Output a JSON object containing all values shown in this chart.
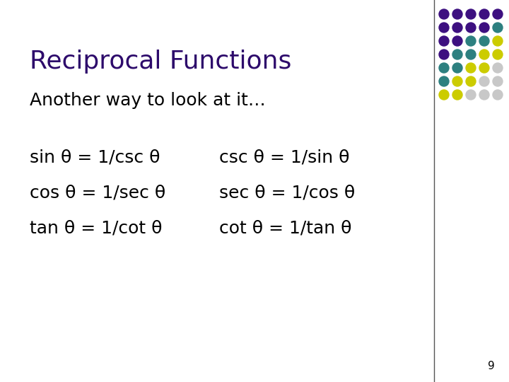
{
  "title": "Reciprocal Functions",
  "subtitle": "Another way to look at it…",
  "title_color": "#2d0a6b",
  "subtitle_color": "#000000",
  "body_color": "#000000",
  "background_color": "#ffffff",
  "left_col": [
    "sin θ = 1/csc θ",
    "cos θ = 1/sec θ",
    "tan θ = 1/cot θ"
  ],
  "right_col": [
    "csc θ = 1/sin θ",
    "sec θ = 1/cos θ",
    "cot θ = 1/tan θ"
  ],
  "dot_grid": {
    "rows": 7,
    "cols": 5,
    "colors": [
      [
        "#3d1080",
        "#3d1080",
        "#3d1080",
        "#3d1080",
        "#3d1080"
      ],
      [
        "#3d1080",
        "#3d1080",
        "#3d1080",
        "#3d1080",
        "#2d8080"
      ],
      [
        "#3d1080",
        "#3d1080",
        "#2d8080",
        "#2d8080",
        "#cccc00"
      ],
      [
        "#3d1080",
        "#2d8080",
        "#2d8080",
        "#cccc00",
        "#cccc00"
      ],
      [
        "#2d8080",
        "#2d8080",
        "#cccc00",
        "#cccc00",
        "#c8c8c8"
      ],
      [
        "#2d8080",
        "#cccc00",
        "#cccc00",
        "#c8c8c8",
        "#c8c8c8"
      ],
      [
        "#cccc00",
        "#cccc00",
        "#c8c8c8",
        "#c8c8c8",
        "#c8c8c8"
      ]
    ]
  },
  "page_number": "9",
  "title_fontsize": 26,
  "subtitle_fontsize": 18,
  "body_fontsize": 18
}
